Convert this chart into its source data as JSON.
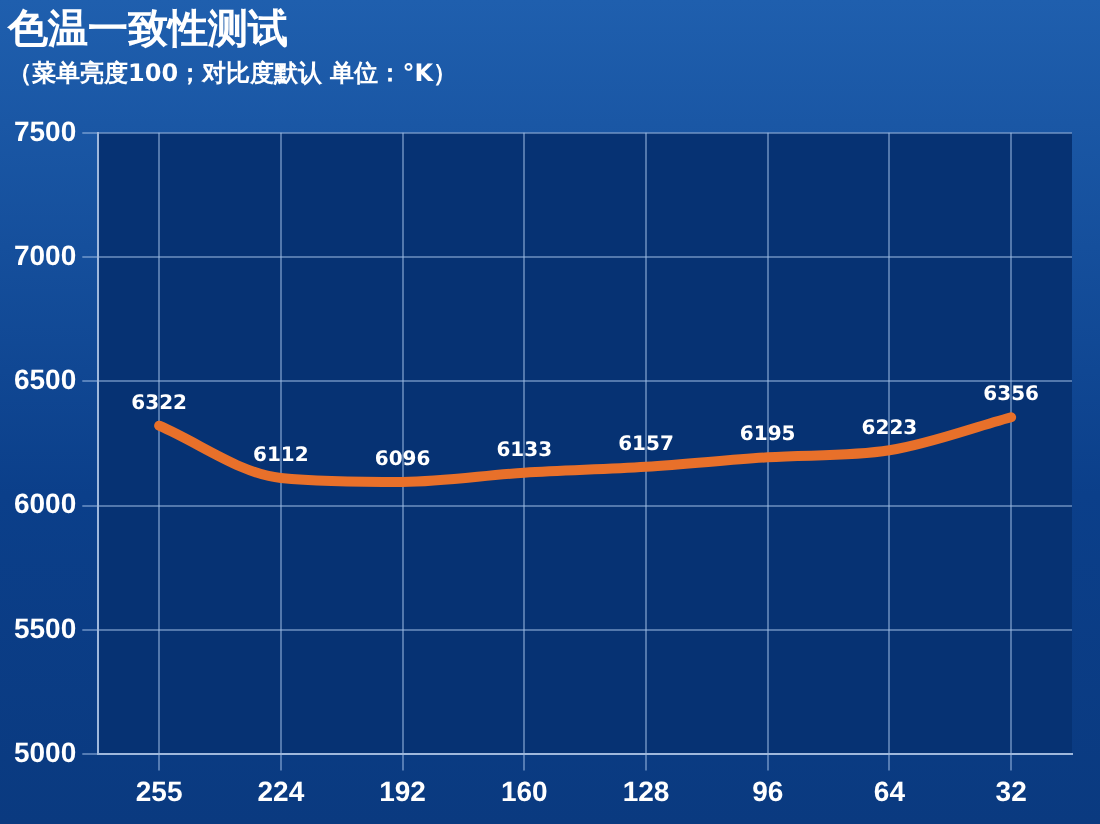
{
  "chart_data": {
    "type": "line",
    "title": "色温一致性测试",
    "subtitle": "（菜单亮度100；对比度默认 单位：°K）",
    "categories": [
      "255",
      "224",
      "192",
      "160",
      "128",
      "96",
      "64",
      "32"
    ],
    "series": [
      {
        "color": "#e8702a",
        "values": [
          6322,
          6112,
          6096,
          6133,
          6157,
          6195,
          6223,
          6356
        ]
      }
    ],
    "ylim": [
      5000,
      7500
    ],
    "yticks": [
      5000,
      5500,
      6000,
      6500,
      7000,
      7500
    ],
    "grid": true,
    "data_labels": true,
    "marker": "none",
    "line_style": "solid"
  }
}
